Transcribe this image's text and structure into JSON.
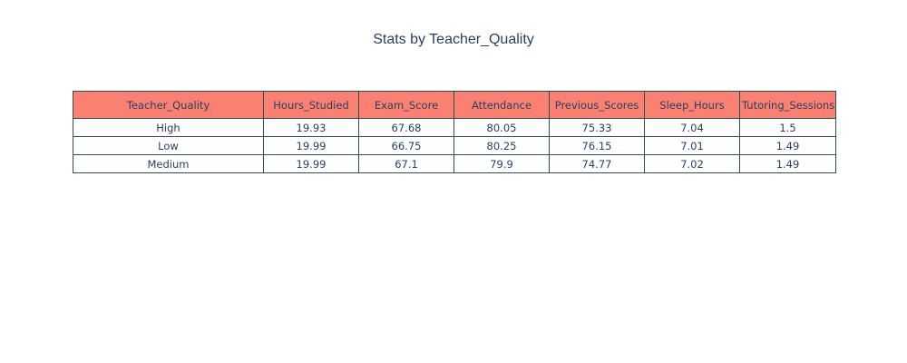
{
  "chart_data": {
    "type": "table",
    "title": "Stats by Teacher_Quality",
    "header_color": "#fa8072",
    "cell_color": "#ffffff",
    "border_color": "#2f4f4f",
    "text_color": "#2a3f5f",
    "columns": [
      "Teacher_Quality",
      "Hours_Studied",
      "Exam_Score",
      "Attendance",
      "Previous_Scores",
      "Sleep_Hours",
      "Tutoring_Sessions"
    ],
    "rows": [
      [
        "High",
        "19.93",
        "67.68",
        "80.05",
        "75.33",
        "7.04",
        "1.5"
      ],
      [
        "Low",
        "19.99",
        "66.75",
        "80.25",
        "76.15",
        "7.01",
        "1.49"
      ],
      [
        "Medium",
        "19.99",
        "67.1",
        "79.9",
        "74.77",
        "7.02",
        "1.49"
      ]
    ]
  }
}
